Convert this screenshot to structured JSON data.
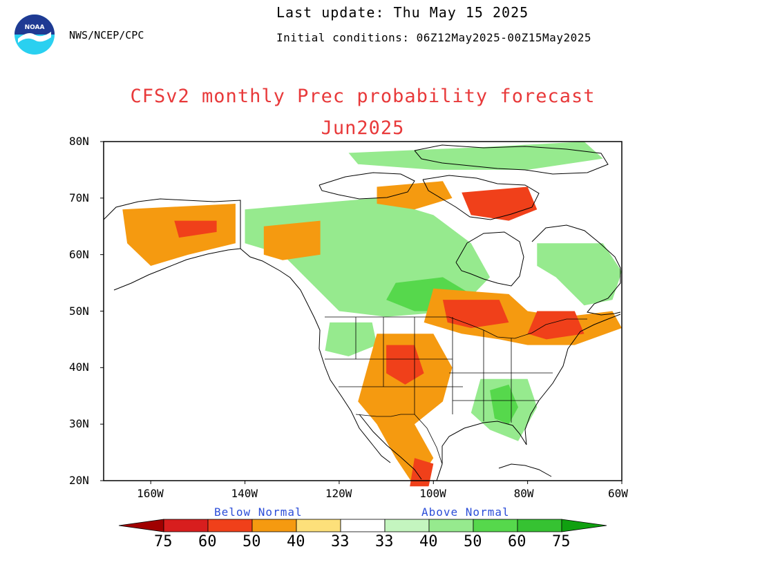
{
  "header": {
    "agency": "NWS/NCEP/CPC",
    "last_update": "Last update: Thu May 15 2025",
    "initial_conditions": "Initial conditions: 06Z12May2025-00Z15May2025",
    "title": "CFSv2 monthly Prec probability forecast",
    "subtitle": "Jun2025"
  },
  "logo": {
    "text": "NOAA",
    "icon": "noaa-logo"
  },
  "map": {
    "projection": "equirectangular",
    "lon_range": [
      -170,
      -60
    ],
    "lat_range": [
      20,
      80
    ],
    "lat_ticks": [
      "20N",
      "30N",
      "40N",
      "50N",
      "60N",
      "70N",
      "80N"
    ],
    "lon_ticks": [
      "160W",
      "140W",
      "120W",
      "100W",
      "80W",
      "60W"
    ]
  },
  "legend": {
    "below_label": "Below Normal",
    "above_label": "Above Normal",
    "numbers": [
      "75",
      "60",
      "50",
      "40",
      "33",
      "33",
      "40",
      "50",
      "60",
      "75"
    ],
    "below_colors": [
      "#a00000",
      "#d81e1e",
      "#f0401a",
      "#f59a10",
      "#fde07a"
    ],
    "above_colors": [
      "#c4f5bf",
      "#96ea8e",
      "#56d84c",
      "#36c232",
      "#10a010"
    ],
    "neutral_color": "#ffffff"
  },
  "forecast_regions": [
    {
      "category": "above-40",
      "color": "#96ea8e",
      "points": [
        [
          -140,
          68
        ],
        [
          -112,
          70
        ],
        [
          -100,
          67
        ],
        [
          -92,
          62
        ],
        [
          -88,
          56
        ],
        [
          -95,
          50
        ],
        [
          -110,
          49
        ],
        [
          -120,
          50
        ],
        [
          -126,
          55
        ],
        [
          -132,
          60
        ],
        [
          -140,
          62
        ]
      ]
    },
    {
      "category": "above-50",
      "color": "#56d84c",
      "points": [
        [
          -108,
          55
        ],
        [
          -98,
          56
        ],
        [
          -92,
          53
        ],
        [
          -95,
          50
        ],
        [
          -104,
          50
        ],
        [
          -110,
          52
        ]
      ]
    },
    {
      "category": "above-40",
      "color": "#96ea8e",
      "points": [
        [
          -90,
          38
        ],
        [
          -80,
          38
        ],
        [
          -78,
          33
        ],
        [
          -82,
          27
        ],
        [
          -88,
          29
        ],
        [
          -92,
          32
        ]
      ]
    },
    {
      "category": "above-50",
      "color": "#56d84c",
      "points": [
        [
          -88,
          36
        ],
        [
          -84,
          37
        ],
        [
          -82,
          33
        ],
        [
          -84,
          30
        ],
        [
          -87,
          31
        ]
      ]
    },
    {
      "category": "above-40",
      "color": "#96ea8e",
      "points": [
        [
          -78,
          62
        ],
        [
          -64,
          62
        ],
        [
          -60,
          57
        ],
        [
          -62,
          52
        ],
        [
          -68,
          51
        ],
        [
          -74,
          56
        ],
        [
          -78,
          58
        ]
      ]
    },
    {
      "category": "above-40",
      "color": "#96ea8e",
      "points": [
        [
          -122,
          48
        ],
        [
          -113,
          48
        ],
        [
          -112,
          44
        ],
        [
          -118,
          42
        ],
        [
          -123,
          43
        ]
      ]
    },
    {
      "category": "below-40",
      "color": "#f59a10",
      "points": [
        [
          -166,
          68
        ],
        [
          -142,
          69
        ],
        [
          -142,
          62
        ],
        [
          -152,
          60
        ],
        [
          -160,
          58
        ],
        [
          -165,
          62
        ]
      ]
    },
    {
      "category": "below-50",
      "color": "#f0401a",
      "points": [
        [
          -155,
          66
        ],
        [
          -146,
          66
        ],
        [
          -146,
          64
        ],
        [
          -154,
          63
        ]
      ]
    },
    {
      "category": "below-40",
      "color": "#f59a10",
      "points": [
        [
          -136,
          65
        ],
        [
          -124,
          66
        ],
        [
          -124,
          60
        ],
        [
          -132,
          59
        ],
        [
          -136,
          60
        ]
      ]
    },
    {
      "category": "below-40",
      "color": "#f59a10",
      "points": [
        [
          -100,
          54
        ],
        [
          -84,
          53
        ],
        [
          -80,
          50
        ],
        [
          -72,
          49
        ],
        [
          -62,
          50
        ],
        [
          -60,
          47
        ],
        [
          -70,
          44
        ],
        [
          -80,
          44
        ],
        [
          -86,
          45
        ],
        [
          -94,
          46
        ],
        [
          -102,
          48
        ]
      ]
    },
    {
      "category": "below-50",
      "color": "#f0401a",
      "points": [
        [
          -98,
          52
        ],
        [
          -86,
          52
        ],
        [
          -84,
          48
        ],
        [
          -92,
          47
        ],
        [
          -97,
          48
        ]
      ]
    },
    {
      "category": "below-50",
      "color": "#f0401a",
      "points": [
        [
          -78,
          50
        ],
        [
          -70,
          50
        ],
        [
          -68,
          46
        ],
        [
          -76,
          45
        ],
        [
          -80,
          46
        ]
      ]
    },
    {
      "category": "below-40",
      "color": "#f59a10",
      "points": [
        [
          -112,
          46
        ],
        [
          -100,
          46
        ],
        [
          -96,
          40
        ],
        [
          -98,
          34
        ],
        [
          -104,
          30
        ],
        [
          -100,
          24
        ],
        [
          -104,
          19
        ],
        [
          -108,
          24
        ],
        [
          -112,
          30
        ],
        [
          -116,
          34
        ],
        [
          -114,
          40
        ]
      ]
    },
    {
      "category": "below-50",
      "color": "#f0401a",
      "points": [
        [
          -110,
          44
        ],
        [
          -104,
          44
        ],
        [
          -102,
          39
        ],
        [
          -106,
          37
        ],
        [
          -110,
          39
        ]
      ]
    },
    {
      "category": "below-50",
      "color": "#f0401a",
      "points": [
        [
          -104,
          24
        ],
        [
          -100,
          23
        ],
        [
          -101,
          19
        ],
        [
          -105,
          19
        ]
      ]
    },
    {
      "category": "below-40",
      "color": "#f59a10",
      "points": [
        [
          -112,
          72
        ],
        [
          -98,
          73
        ],
        [
          -96,
          70
        ],
        [
          -104,
          68
        ],
        [
          -112,
          69
        ]
      ]
    },
    {
      "category": "below-50",
      "color": "#f0401a",
      "points": [
        [
          -94,
          71
        ],
        [
          -80,
          72
        ],
        [
          -78,
          68
        ],
        [
          -84,
          66
        ],
        [
          -92,
          67
        ]
      ]
    },
    {
      "category": "above-40",
      "color": "#96ea8e",
      "points": [
        [
          -118,
          78
        ],
        [
          -90,
          79
        ],
        [
          -68,
          80
        ],
        [
          -64,
          77
        ],
        [
          -80,
          75
        ],
        [
          -100,
          75
        ],
        [
          -116,
          76
        ]
      ]
    }
  ]
}
